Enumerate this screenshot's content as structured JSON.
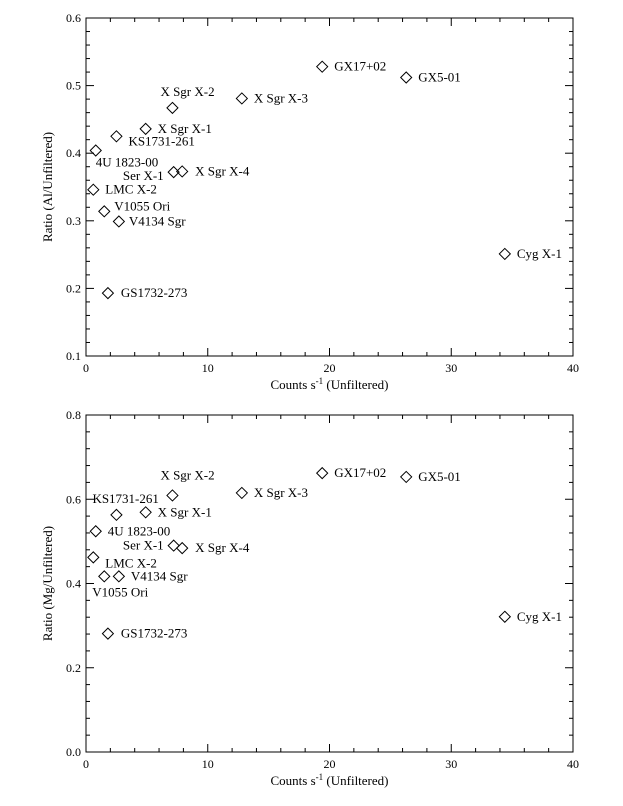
{
  "chart_data": [
    {
      "type": "scatter",
      "xlabel_main": "Counts s",
      "xlabel_sup": "-1",
      "xlabel_tail": " (Unfiltered)",
      "ylabel": "Ratio (Al/Unfiltered)",
      "xlim": [
        0,
        40
      ],
      "ylim": [
        0.1,
        0.6
      ],
      "xticks": [
        0,
        10,
        20,
        30,
        40
      ],
      "yticks": [
        0.1,
        0.2,
        0.3,
        0.4,
        0.5,
        0.6
      ],
      "y_decimals": 1,
      "points": [
        {
          "name": "GX17+02",
          "x": 19.4,
          "y": 0.528
        },
        {
          "name": "GX5-01",
          "x": 26.3,
          "y": 0.512
        },
        {
          "name": "X Sgr X-2",
          "x": 7.1,
          "y": 0.467
        },
        {
          "name": "X Sgr X-3",
          "x": 12.8,
          "y": 0.481
        },
        {
          "name": "X Sgr X-1",
          "x": 4.9,
          "y": 0.436
        },
        {
          "name": "KS1731-261",
          "x": 2.5,
          "y": 0.425
        },
        {
          "name": "4U 1823-00",
          "x": 0.8,
          "y": 0.404
        },
        {
          "name": "Ser X-1",
          "x": 7.2,
          "y": 0.372
        },
        {
          "name": "X Sgr X-4",
          "x": 7.9,
          "y": 0.373
        },
        {
          "name": "LMC X-2",
          "x": 0.6,
          "y": 0.346
        },
        {
          "name": "V1055 Ori",
          "x": 1.5,
          "y": 0.314
        },
        {
          "name": "V4134 Sgr",
          "x": 2.7,
          "y": 0.299
        },
        {
          "name": "Cyg X-1",
          "x": 34.4,
          "y": 0.251
        },
        {
          "name": "GS1732-273",
          "x": 1.8,
          "y": 0.193
        }
      ]
    },
    {
      "type": "scatter",
      "xlabel_main": "Counts s",
      "xlabel_sup": "-1",
      "xlabel_tail": " (Unfiltered)",
      "ylabel": "Ratio (Mg/Unfiltered)",
      "xlim": [
        0,
        40
      ],
      "ylim": [
        0.0,
        0.8
      ],
      "xticks": [
        0,
        10,
        20,
        30,
        40
      ],
      "yticks": [
        0.0,
        0.2,
        0.4,
        0.6,
        0.8
      ],
      "y_decimals": 1,
      "points": [
        {
          "name": "GX17+02",
          "x": 19.4,
          "y": 0.662
        },
        {
          "name": "GX5-01",
          "x": 26.3,
          "y": 0.653
        },
        {
          "name": "X Sgr X-2",
          "x": 7.1,
          "y": 0.609
        },
        {
          "name": "X Sgr X-3",
          "x": 12.8,
          "y": 0.615
        },
        {
          "name": "KS1731-261",
          "x": 2.5,
          "y": 0.563
        },
        {
          "name": "X Sgr X-1",
          "x": 4.9,
          "y": 0.569
        },
        {
          "name": "4U 1823-00",
          "x": 0.8,
          "y": 0.524
        },
        {
          "name": "Ser X-1",
          "x": 7.2,
          "y": 0.49
        },
        {
          "name": "X Sgr X-4",
          "x": 7.9,
          "y": 0.484
        },
        {
          "name": "LMC X-2",
          "x": 0.6,
          "y": 0.462
        },
        {
          "name": "V1055 Ori",
          "x": 1.5,
          "y": 0.417
        },
        {
          "name": "V4134 Sgr",
          "x": 2.7,
          "y": 0.417
        },
        {
          "name": "Cyg X-1",
          "x": 34.4,
          "y": 0.321
        },
        {
          "name": "GS1732-273",
          "x": 1.8,
          "y": 0.281
        }
      ]
    }
  ]
}
